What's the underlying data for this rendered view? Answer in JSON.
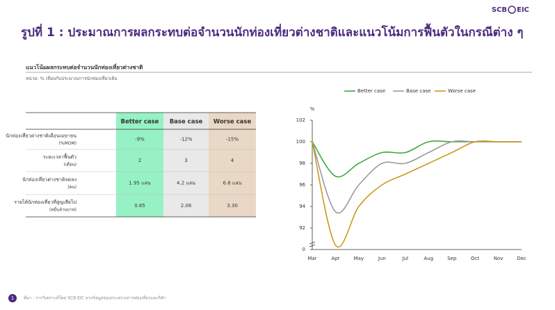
{
  "header": {
    "title": "รูปที่ 1 : ประมาณการผลกระทบต่อจำนวนนักท่องเที่ยวต่างชาติและแนวโน้มการฟื้นตัวในกรณีต่าง ๆ",
    "logo_left": "SCB",
    "logo_right": "EIC"
  },
  "subtitle": "แนวโน้มผลกระทบต่อจำนวนนักท่องเที่ยวต่างชาติ",
  "unit_note": "หน่วย: % เทียบกับประมาณการนักท่องเที่ยวเดิม",
  "table": {
    "columns": [
      "Better case",
      "Base case",
      "Worse case"
    ],
    "rows": [
      {
        "label": "นักท่องเที่ยวต่างชาติเดือนเมษายน",
        "unit": "(%MOM)",
        "cells": [
          "-9%",
          "-12%",
          "-15%"
        ]
      },
      {
        "label": "ระยะเวลาฟื้นตัว",
        "unit": "(เดือน)",
        "cells": [
          "2",
          "3",
          "4"
        ]
      },
      {
        "label": "นักท่องเที่ยวต่างชาติลดลง",
        "unit": "(คน)",
        "cells": [
          "1.95 แสน",
          "4.2 แสน",
          "6.8 แสน"
        ]
      },
      {
        "label": "รายได้นักท่องเที่ยวที่สูญเสียไป",
        "unit": "(หมื่นล้านบาท)",
        "cells": [
          "0.85",
          "2.06",
          "3.30"
        ]
      }
    ]
  },
  "chart_data": {
    "type": "line",
    "y_label": "%",
    "categories": [
      "Mar",
      "Apr",
      "May",
      "Jun",
      "Jul",
      "Aug",
      "Sep",
      "Oct",
      "Nov",
      "Dec"
    ],
    "series": [
      {
        "name": "Better case",
        "color": "#3ea83e",
        "values": [
          100,
          96.8,
          98,
          99,
          99,
          100,
          100,
          100,
          100,
          100
        ]
      },
      {
        "name": "Base case",
        "color": "#9a9a9a",
        "values": [
          100,
          93.5,
          96,
          98,
          98,
          99,
          100,
          100,
          100,
          100
        ]
      },
      {
        "name": "Worse case",
        "color": "#c99a1c",
        "values": [
          100,
          90.4,
          94,
          96,
          97,
          98,
          99,
          100,
          100,
          100
        ]
      }
    ],
    "ylim": [
      90,
      102
    ],
    "yticks": [
      {
        "value": 90,
        "label": "0"
      },
      92,
      94,
      96,
      98,
      100,
      102
    ],
    "grid": false,
    "legend": "top"
  },
  "footer": {
    "page": "1",
    "source": "ที่มา : การวิเคราะห์โดย SCB EIC จากข้อมูลของกระทรวงการท่องเที่ยวและกีฬา"
  }
}
